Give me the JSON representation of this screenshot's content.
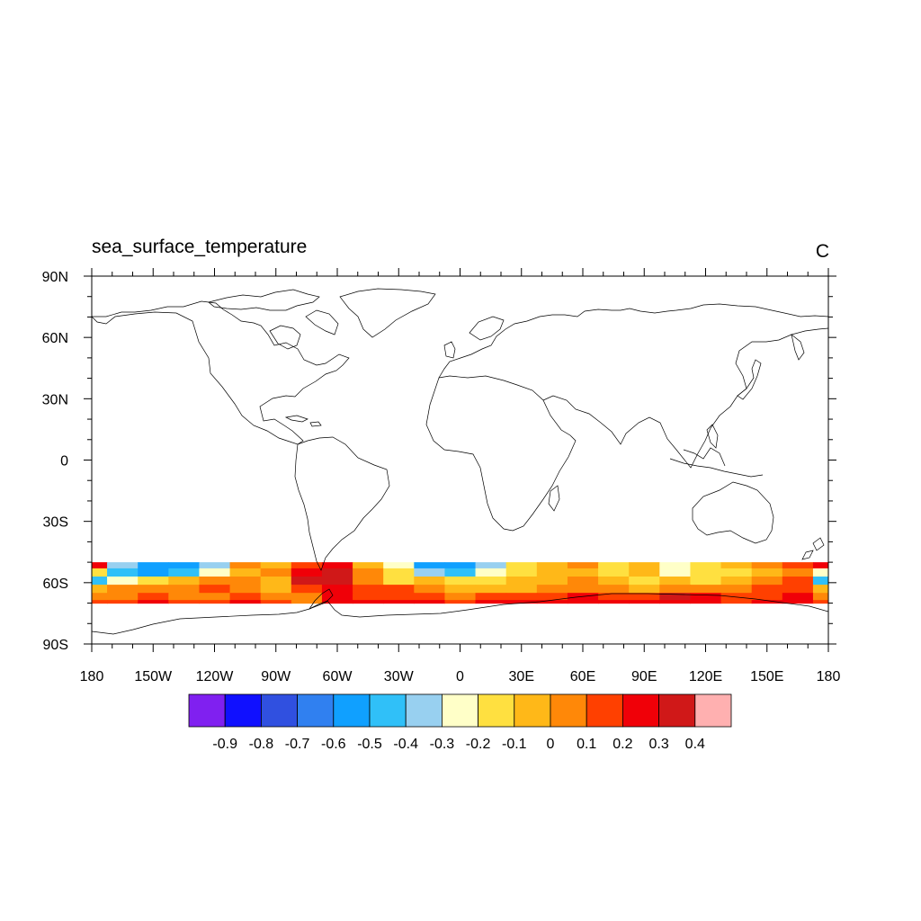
{
  "title": "sea_surface_temperature",
  "units": "C",
  "map": {
    "projection": "cylindrical equidistant",
    "lon_range": [
      -180,
      180
    ],
    "lat_range": [
      -90,
      90
    ],
    "lon_ticks": [
      {
        "value": -180,
        "label": "180"
      },
      {
        "value": -150,
        "label": "150W"
      },
      {
        "value": -120,
        "label": "120W"
      },
      {
        "value": -90,
        "label": "90W"
      },
      {
        "value": -60,
        "label": "60W"
      },
      {
        "value": -30,
        "label": "30W"
      },
      {
        "value": 0,
        "label": "0"
      },
      {
        "value": 30,
        "label": "30E"
      },
      {
        "value": 60,
        "label": "60E"
      },
      {
        "value": 90,
        "label": "90E"
      },
      {
        "value": 120,
        "label": "120E"
      },
      {
        "value": 150,
        "label": "150E"
      },
      {
        "value": 180,
        "label": "180"
      }
    ],
    "lat_ticks": [
      {
        "value": 90,
        "label": "90N"
      },
      {
        "value": 60,
        "label": "60N"
      },
      {
        "value": 30,
        "label": "30N"
      },
      {
        "value": 0,
        "label": "0"
      },
      {
        "value": -30,
        "label": "30S"
      },
      {
        "value": -60,
        "label": "60S"
      },
      {
        "value": -90,
        "label": "90S"
      }
    ],
    "data_band_lat": [
      -70,
      -50
    ],
    "coastline_color": "#000000"
  },
  "colorbar": {
    "colors": [
      "#8020f0",
      "#1010ff",
      "#3050e0",
      "#3080f0",
      "#10a0ff",
      "#30c0f8",
      "#98d0f0",
      "#ffffc8",
      "#ffe040",
      "#ffb818",
      "#ff8808",
      "#ff4000",
      "#f00008",
      "#d01818",
      "#ffb0b0"
    ],
    "labels": [
      "-0.9",
      "-0.8",
      "-0.7",
      "-0.6",
      "-0.5",
      "-0.4",
      "-0.3",
      "-0.2",
      "-0.1",
      "0",
      "0.1",
      "0.2",
      "0.3",
      "0.4"
    ]
  },
  "chart_data": {
    "type": "heatmap",
    "title": "sea_surface_temperature",
    "units": "C",
    "region": {
      "lat": [
        -70,
        -50
      ],
      "lon": [
        -180,
        180
      ]
    },
    "lon_samples": [
      -180,
      -165,
      -150,
      -135,
      -120,
      -105,
      -90,
      -75,
      -60,
      -45,
      -30,
      -15,
      0,
      15,
      30,
      45,
      60,
      75,
      90,
      105,
      120,
      135,
      150,
      165,
      180
    ],
    "lat_rows": [
      {
        "lat": -51,
        "values": [
          0.2,
          -0.4,
          -0.6,
          -0.6,
          -0.4,
          0.0,
          -0.1,
          0.1,
          0.2,
          -0.1,
          -0.3,
          -0.6,
          -0.6,
          -0.4,
          -0.2,
          -0.1,
          0.0,
          -0.2,
          -0.1,
          -0.3,
          -0.2,
          -0.1,
          0.0,
          0.1,
          0.2
        ]
      },
      {
        "lat": -55,
        "values": [
          -0.2,
          -0.5,
          -0.6,
          -0.5,
          -0.3,
          -0.1,
          0.0,
          0.2,
          0.3,
          0.0,
          -0.2,
          -0.4,
          -0.5,
          -0.3,
          -0.2,
          -0.1,
          -0.1,
          -0.2,
          -0.1,
          -0.3,
          -0.2,
          -0.2,
          -0.1,
          0.0,
          -0.3
        ]
      },
      {
        "lat": -59,
        "values": [
          -0.5,
          -0.3,
          -0.2,
          -0.1,
          0.0,
          0.0,
          -0.1,
          0.3,
          0.3,
          0.0,
          -0.2,
          -0.1,
          -0.2,
          -0.2,
          -0.1,
          -0.1,
          0.0,
          -0.1,
          -0.2,
          -0.1,
          -0.2,
          -0.1,
          0.0,
          0.1,
          -0.5
        ]
      },
      {
        "lat": -63,
        "values": [
          -0.1,
          0.0,
          0.0,
          0.0,
          0.1,
          0.0,
          -0.1,
          0.1,
          0.2,
          0.1,
          0.1,
          0.0,
          -0.1,
          -0.1,
          -0.1,
          0.0,
          0.0,
          0.0,
          -0.1,
          0.0,
          0.0,
          0.0,
          0.1,
          0.1,
          -0.1
        ]
      },
      {
        "lat": -67,
        "values": [
          0.0,
          0.0,
          0.1,
          0.0,
          0.0,
          0.1,
          0.0,
          0.0,
          0.2,
          0.1,
          0.1,
          0.1,
          0.0,
          0.1,
          0.1,
          0.1,
          0.2,
          0.1,
          0.1,
          0.3,
          0.2,
          0.1,
          0.1,
          0.2,
          0.0
        ]
      },
      {
        "lat": -70,
        "values": [
          0.1,
          0.1,
          0.2,
          0.1,
          0.1,
          0.2,
          0.1,
          0.0,
          0.2,
          0.2,
          0.2,
          0.2,
          0.1,
          0.2,
          0.2,
          0.2,
          0.2,
          0.2,
          0.2,
          0.2,
          0.2,
          0.1,
          0.2,
          0.2,
          0.1
        ]
      }
    ],
    "levels": [
      -0.9,
      -0.8,
      -0.7,
      -0.6,
      -0.5,
      -0.4,
      -0.3,
      -0.2,
      -0.1,
      0,
      0.1,
      0.2,
      0.3,
      0.4
    ]
  }
}
